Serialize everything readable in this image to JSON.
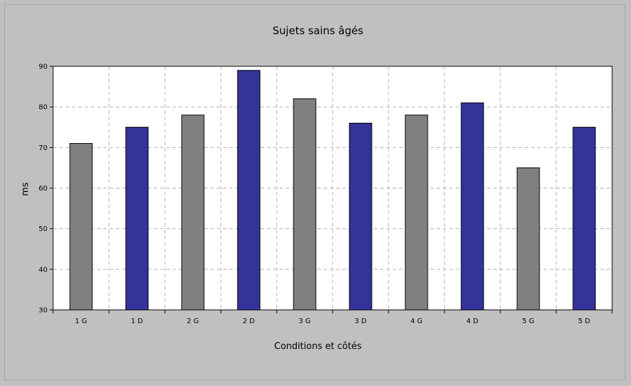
{
  "chart_data": {
    "type": "bar",
    "title": "Sujets sains âgés",
    "xlabel": "Conditions et côtés",
    "ylabel": "ms",
    "categories": [
      "1 G",
      "1 D",
      "2 G",
      "2 D",
      "3 G",
      "3 D",
      "4 G",
      "4 D",
      "5 G",
      "5 D"
    ],
    "values": [
      71,
      75,
      78,
      89,
      82,
      76,
      78,
      81,
      65,
      75
    ],
    "ylim": [
      30,
      90
    ],
    "yticks": [
      30,
      40,
      50,
      60,
      70,
      80,
      90
    ],
    "grid": true,
    "legend": "none",
    "colors": {
      "background": "#c0c0c0",
      "plot_area": "#ffffff",
      "G_bar": "#808080",
      "D_bar": "#333399",
      "grid": "#b0b0b0"
    }
  }
}
